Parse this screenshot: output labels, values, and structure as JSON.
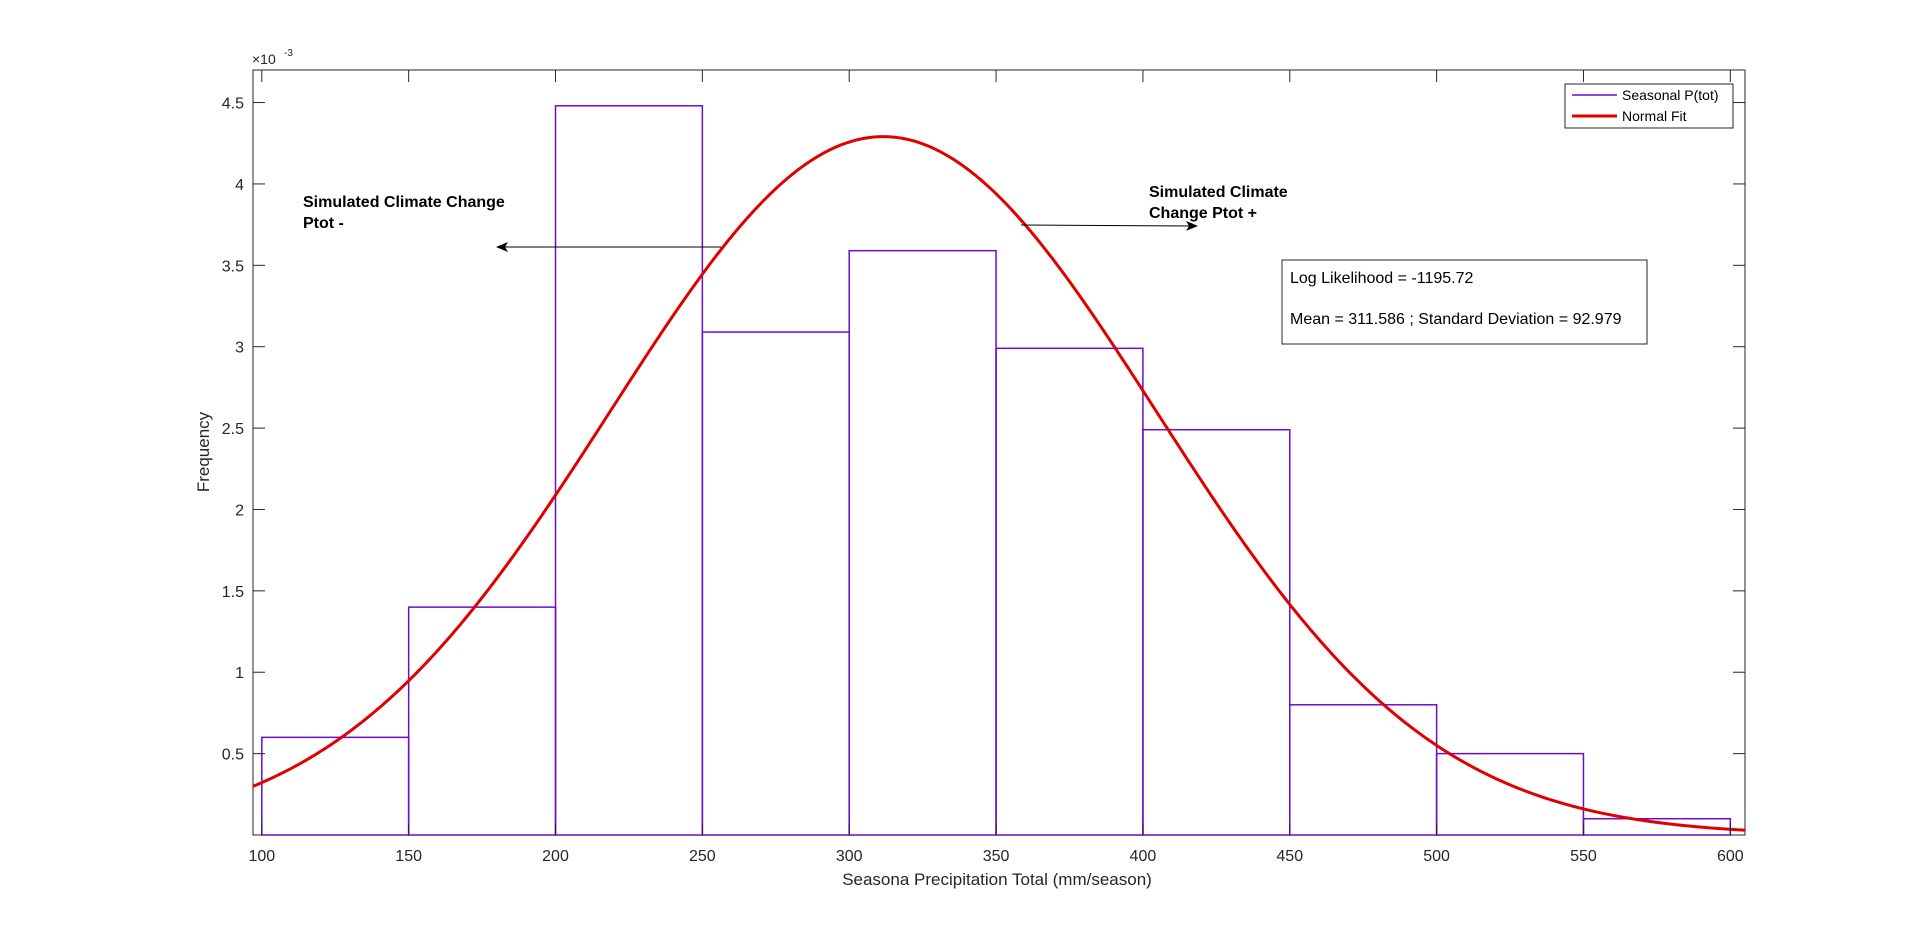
{
  "chart_data": {
    "type": "bar",
    "subtype": "histogram-with-fit",
    "xlabel": "Seasona Precipitation Total (mm/season)",
    "ylabel": "Frequency",
    "y_exponent_label": "×10",
    "y_exponent_power": "-3",
    "xlim": [
      97,
      605
    ],
    "ylim": [
      0,
      4.7
    ],
    "grid": false,
    "legend_position": "top-right",
    "x_ticks": [
      100,
      150,
      200,
      250,
      300,
      350,
      400,
      450,
      500,
      550,
      600
    ],
    "x_tick_labels": [
      "100",
      "150",
      "200",
      "250",
      "300",
      "350",
      "400",
      "450",
      "500",
      "550",
      "600"
    ],
    "y_ticks": [
      0.5,
      1,
      1.5,
      2,
      2.5,
      3,
      3.5,
      4,
      4.5
    ],
    "y_tick_labels": [
      "0.5",
      "1",
      "1.5",
      "2",
      "2.5",
      "3",
      "3.5",
      "4",
      "4.5"
    ],
    "bin_edges": [
      100,
      150,
      200,
      250,
      300,
      350,
      400,
      450,
      500,
      550,
      600
    ],
    "series": [
      {
        "name": "Seasonal P(tot)",
        "kind": "histogram",
        "color": "#6a0dcc",
        "values": [
          0.6,
          1.4,
          4.48,
          3.09,
          3.59,
          2.99,
          2.49,
          0.8,
          0.5,
          0.1
        ]
      },
      {
        "name": "Normal Fit",
        "kind": "normal-pdf",
        "color": "#e00000",
        "mean": 311.586,
        "std": 92.979
      }
    ],
    "annotations": {
      "left_arrow_text": [
        "Simulated Climate Change",
        "Ptot -"
      ],
      "right_arrow_text": [
        "Simulated Climate",
        "Change Ptot +"
      ],
      "stats_line1": "Log Likelihood = -1195.72",
      "stats_line2": "Mean = 311.586 ; Standard Deviation = 92.979"
    }
  }
}
